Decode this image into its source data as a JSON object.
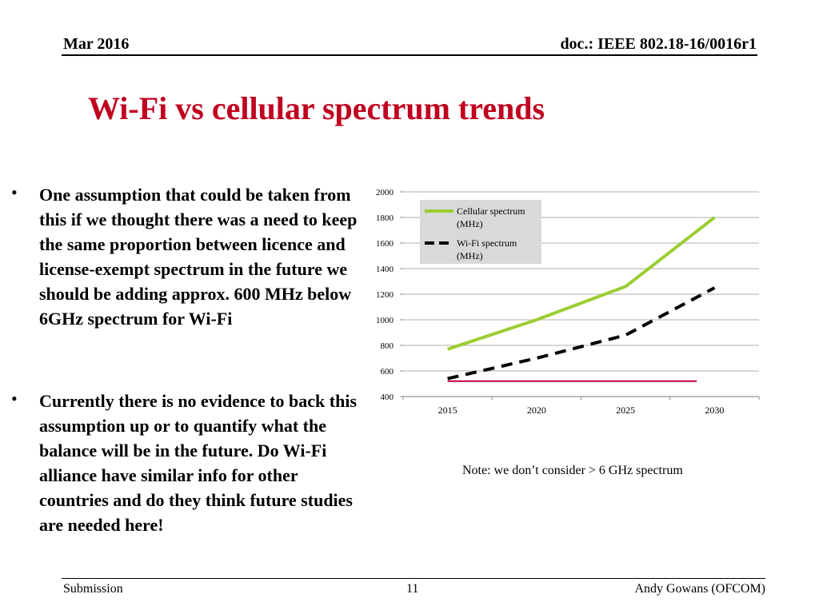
{
  "header": {
    "date": "Mar 2016",
    "doc": "doc.: IEEE 802.18-16/0016r1"
  },
  "title": "Wi-Fi vs cellular spectrum trends",
  "bullets": [
    {
      "marker": "•",
      "text": "One assumption that could be taken from this if we thought there was a need to keep the same proportion between licence and license-exempt spectrum in the future we should be adding approx. 600 MHz below 6GHz spectrum for Wi-Fi"
    },
    {
      "marker": "•",
      "text": "Currently there is no evidence to back this assumption up or to quantify what the balance will be in the future. Do Wi-Fi alliance have similar info for other countries and do they think future studies are needed here!"
    }
  ],
  "note": "Note: we don’t consider > 6 GHz spectrum",
  "footer": {
    "left": "Submission",
    "page": "11",
    "right": "Andy Gowans (OFCOM)"
  },
  "colors": {
    "title": "#c0001e",
    "cellular": "#9acd32",
    "wifi": "#000000",
    "reference": "#c0003c",
    "grid": "#bfbfbf",
    "legend_bg": "#d9d9d9"
  },
  "chart_data": {
    "type": "line",
    "x_ticks": [
      2015,
      2020,
      2025,
      2030
    ],
    "y_ticks": [
      400,
      600,
      800,
      1000,
      1200,
      1400,
      1600,
      1800,
      2000
    ],
    "xlim": [
      2012.5,
      2032.5
    ],
    "ylim": [
      400,
      2000
    ],
    "grid": true,
    "legend_position": "top-left",
    "series": [
      {
        "name": "Cellular spectrum (MHz)",
        "style": "solid",
        "x": [
          2015,
          2020,
          2025,
          2030
        ],
        "y": [
          770,
          1000,
          1260,
          1800
        ]
      },
      {
        "name": "Wi-Fi spectrum (MHz)",
        "style": "dashed",
        "x": [
          2015,
          2020,
          2025,
          2030
        ],
        "y": [
          540,
          700,
          880,
          1250
        ]
      },
      {
        "style": "solid-thin",
        "x": [
          2015,
          2029
        ],
        "y": [
          520,
          520
        ]
      }
    ]
  }
}
